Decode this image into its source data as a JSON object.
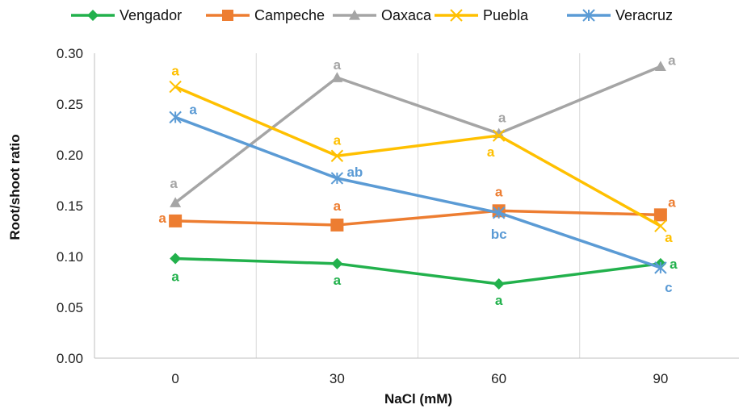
{
  "chart_data": {
    "type": "line",
    "title": "",
    "xlabel": "NaCl (mM)",
    "ylabel": "Root/shoot ratio",
    "categories": [
      "0",
      "30",
      "60",
      "90"
    ],
    "ylim": [
      0,
      0.3
    ],
    "yticks": [
      "0.00",
      "0.05",
      "0.10",
      "0.15",
      "0.20",
      "0.25",
      "0.30"
    ],
    "grid": "vertical",
    "legend": "top",
    "series": [
      {
        "name": "Vengador",
        "color": "#22b14c",
        "marker": "diamond",
        "values": [
          0.098,
          0.093,
          0.073,
          0.093
        ],
        "letters": [
          "a",
          "a",
          "a",
          "a"
        ]
      },
      {
        "name": "Campeche",
        "color": "#ed7d31",
        "marker": "square",
        "values": [
          0.135,
          0.131,
          0.145,
          0.141
        ],
        "letters": [
          "a",
          "a",
          "a",
          "a"
        ]
      },
      {
        "name": "Oaxaca",
        "color": "#a5a5a5",
        "marker": "triangle",
        "values": [
          0.153,
          0.276,
          0.221,
          0.287
        ],
        "letters": [
          "a",
          "a",
          "a",
          "a"
        ]
      },
      {
        "name": "Puebla",
        "color": "#ffc000",
        "marker": "x",
        "values": [
          0.267,
          0.199,
          0.219,
          0.13
        ],
        "letters": [
          "a",
          "a",
          "a",
          "a"
        ]
      },
      {
        "name": "Veracruz",
        "color": "#5b9bd5",
        "marker": "star",
        "values": [
          0.237,
          0.177,
          0.143,
          0.089
        ],
        "letters": [
          "a",
          "ab",
          "bc",
          "c"
        ]
      }
    ]
  }
}
